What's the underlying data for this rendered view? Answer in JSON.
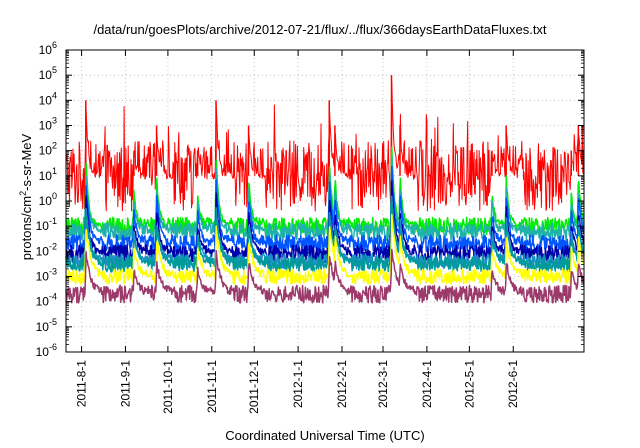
{
  "chart_data": {
    "type": "line",
    "title": "/data/run/goesPlots/archive/2012-07-21/flux/../flux/366daysEarthDataFluxes.txt",
    "xlabel": "Coordinated Universal Time (UTC)",
    "ylabel": "protons/cm2-s-sr-MeV",
    "ylabel_parts": {
      "pre": "protons/cm",
      "sup": "2",
      "post": "-s-sr-MeV"
    },
    "yscale": "log",
    "ylim_exp": [
      -6,
      6
    ],
    "ytick_labels": [
      {
        "base": "10",
        "exp": "-6"
      },
      {
        "base": "10",
        "exp": "-5"
      },
      {
        "base": "10",
        "exp": "-4"
      },
      {
        "base": "10",
        "exp": "-3"
      },
      {
        "base": "10",
        "exp": "-2"
      },
      {
        "base": "10",
        "exp": "-1"
      },
      {
        "base": "10",
        "exp": "0"
      },
      {
        "base": "10",
        "exp": "1"
      },
      {
        "base": "10",
        "exp": "2"
      },
      {
        "base": "10",
        "exp": "3"
      },
      {
        "base": "10",
        "exp": "4"
      },
      {
        "base": "10",
        "exp": "5"
      },
      {
        "base": "10",
        "exp": "6"
      }
    ],
    "xlim": [
      "2011-07-21",
      "2012-07-21"
    ],
    "xtick_labels": [
      "2011-8-1",
      "2011-9-1",
      "2011-10-1",
      "2011-11-1",
      "2011-12-1",
      "2012-1-1",
      "2012-2-1",
      "2012-3-1",
      "2012-4-1",
      "2012-5-1",
      "2012-6-1"
    ],
    "xtick_dates": [
      "2011-08-01",
      "2011-09-01",
      "2011-10-01",
      "2011-11-01",
      "2011-12-01",
      "2012-01-01",
      "2012-02-01",
      "2012-03-01",
      "2012-04-01",
      "2012-05-01",
      "2012-06-01"
    ],
    "grid": true,
    "legend": "none",
    "events": [
      {
        "date": "2011-08-04",
        "peak": 10000
      },
      {
        "date": "2011-09-07",
        "peak": 100
      },
      {
        "date": "2011-09-23",
        "peak": 1000
      },
      {
        "date": "2011-10-22",
        "peak": 100
      },
      {
        "date": "2011-11-04",
        "peak": 10000
      },
      {
        "date": "2011-11-27",
        "peak": 1000
      },
      {
        "date": "2012-01-23",
        "peak": 10000
      },
      {
        "date": "2012-01-27",
        "peak": 1000
      },
      {
        "date": "2012-03-07",
        "peak": 100000
      },
      {
        "date": "2012-03-13",
        "peak": 1000
      },
      {
        "date": "2012-05-17",
        "peak": 100
      },
      {
        "date": "2012-05-27",
        "peak": 1000
      },
      {
        "date": "2012-07-12",
        "peak": 100
      },
      {
        "date": "2012-07-17",
        "peak": 1000
      }
    ],
    "series": [
      {
        "color": "#ff0000",
        "baseline": 10,
        "noise": 1.4,
        "response": 1.0,
        "thickness": 1.0
      },
      {
        "color": "#00ee00",
        "baseline": 0.1,
        "noise": 0.35,
        "response": 0.75,
        "thickness": 1.5
      },
      {
        "color": "#20b2aa",
        "baseline": 0.06,
        "noise": 0.35,
        "response": 0.65,
        "thickness": 1.5
      },
      {
        "color": "#0055ff",
        "baseline": 0.02,
        "noise": 0.35,
        "response": 0.7,
        "thickness": 1.5
      },
      {
        "color": "#0000aa",
        "baseline": 0.008,
        "noise": 0.35,
        "response": 0.6,
        "thickness": 1.5
      },
      {
        "color": "#1e90c8",
        "baseline": 0.004,
        "noise": 0.3,
        "response": 0.55,
        "thickness": 1.5
      },
      {
        "color": "#009a9a",
        "baseline": 0.003,
        "noise": 0.3,
        "response": 0.5,
        "thickness": 1.5
      },
      {
        "color": "#ffff00",
        "baseline": 0.001,
        "noise": 0.3,
        "response": 0.5,
        "thickness": 1.5
      },
      {
        "color": "#9b3a6b",
        "baseline": 0.0002,
        "noise": 0.35,
        "response": 0.35,
        "thickness": 1.5
      }
    ]
  }
}
